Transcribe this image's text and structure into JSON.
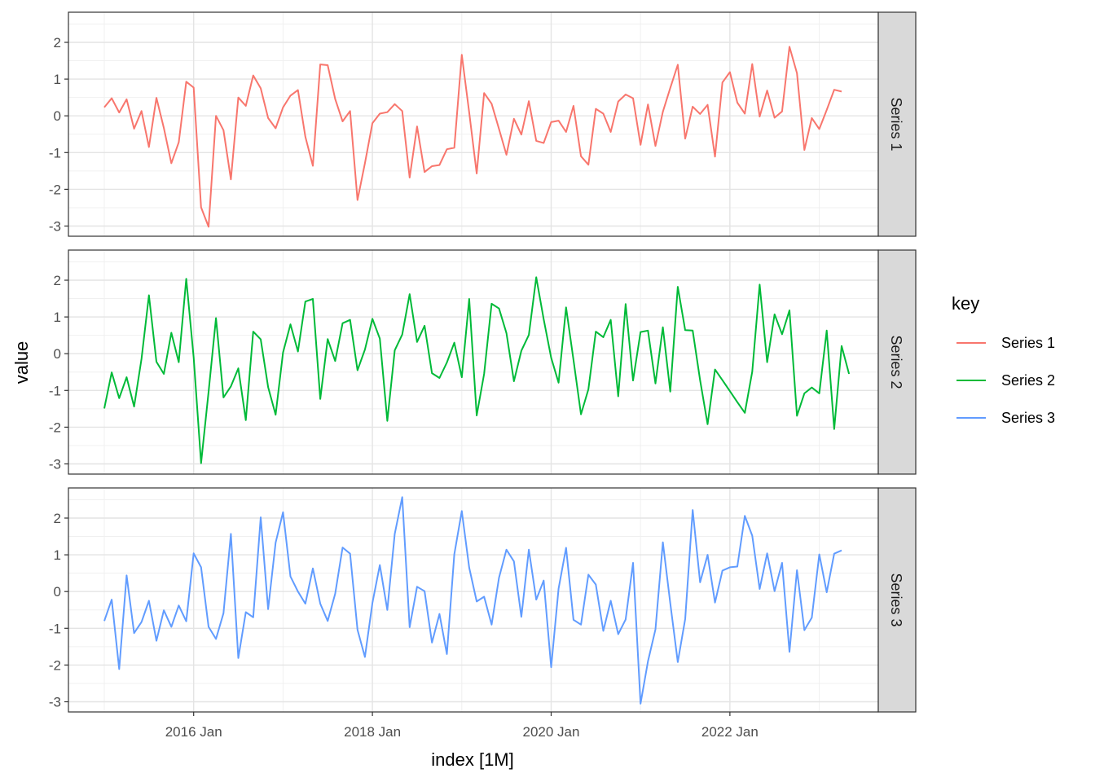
{
  "chart_data": {
    "type": "line",
    "xlabel": "index [1M]",
    "ylabel": "value",
    "x_start": "2015 Jan",
    "x_end": "2023 Apr",
    "x_ticks": [
      "2016 Jan",
      "2018 Jan",
      "2020 Jan",
      "2022 Jan"
    ],
    "y_ticks": [
      "2",
      "1",
      "0",
      "-1",
      "-2",
      "-3"
    ],
    "ylim": [
      -3.25,
      2.8
    ],
    "legend": {
      "title": "key",
      "position": "right"
    },
    "grid": true,
    "facets": [
      "Series 1",
      "Series 2",
      "Series 3"
    ],
    "series": [
      {
        "name": "Series 1",
        "color": "#F8766D",
        "values": [
          0.23,
          0.48,
          0.09,
          0.45,
          -0.35,
          0.13,
          -0.85,
          0.49,
          -0.33,
          -1.29,
          -0.72,
          0.93,
          0.77,
          -2.49,
          -3.02,
          0.0,
          -0.39,
          -1.73,
          0.5,
          0.27,
          1.1,
          0.75,
          -0.06,
          -0.34,
          0.23,
          0.55,
          0.7,
          -0.57,
          -1.36,
          1.4,
          1.38,
          0.46,
          -0.15,
          0.13,
          -2.29,
          -1.29,
          -0.2,
          0.06,
          0.1,
          0.32,
          0.13,
          -1.68,
          -0.29,
          -1.53,
          -1.37,
          -1.34,
          -0.91,
          -0.87,
          1.66,
          0.09,
          -1.57,
          0.62,
          0.33,
          -0.36,
          -1.06,
          -0.08,
          -0.51,
          0.4,
          -0.68,
          -0.74,
          -0.17,
          -0.13,
          -0.44,
          0.27,
          -1.1,
          -1.33,
          0.19,
          0.06,
          -0.44,
          0.39,
          0.58,
          0.48,
          -0.79,
          0.31,
          -0.82,
          0.11,
          0.76,
          1.39,
          -0.62,
          0.25,
          0.05,
          0.3,
          -1.11,
          0.91,
          1.19,
          0.36,
          0.06,
          1.41,
          -0.02,
          0.69,
          -0.05,
          0.12,
          1.88,
          1.16,
          -0.93,
          -0.06,
          -0.36,
          0.16,
          0.71,
          0.66
        ]
      },
      {
        "name": "Series 2",
        "color": "#00BA38",
        "values": [
          -1.49,
          -0.51,
          -1.21,
          -0.64,
          -1.44,
          -0.14,
          1.59,
          -0.22,
          -0.55,
          0.57,
          -0.23,
          2.04,
          -0.1,
          -2.98,
          -1.04,
          0.97,
          -1.19,
          -0.89,
          -0.4,
          -1.81,
          0.6,
          0.39,
          -0.91,
          -1.66,
          0.03,
          0.8,
          0.06,
          1.42,
          1.49,
          -1.23,
          0.4,
          -0.2,
          0.83,
          0.92,
          -0.45,
          0.11,
          0.95,
          0.41,
          -1.83,
          0.09,
          0.52,
          1.62,
          0.32,
          0.76,
          -0.53,
          -0.66,
          -0.24,
          0.3,
          -0.64,
          1.49,
          -1.68,
          -0.55,
          1.36,
          1.23,
          0.56,
          -0.75,
          0.08,
          0.51,
          2.08,
          0.94,
          -0.11,
          -0.79,
          1.26,
          -0.17,
          -1.65,
          -0.97,
          0.6,
          0.45,
          0.92,
          -1.16,
          1.35,
          -0.73,
          0.59,
          0.63,
          -0.81,
          0.72,
          -1.03,
          1.82,
          0.64,
          0.63,
          -0.72,
          -1.92,
          -0.43,
          -0.72,
          -1.02,
          -1.32,
          -1.61,
          -0.49,
          1.88,
          -0.23,
          1.07,
          0.53,
          1.18,
          -1.69,
          -1.08,
          -0.92,
          -1.08,
          0.63,
          -2.05,
          0.21,
          -0.55
        ]
      },
      {
        "name": "Series 3",
        "color": "#619CFF",
        "values": [
          -0.8,
          -0.22,
          -2.11,
          0.44,
          -1.13,
          -0.83,
          -0.25,
          -1.34,
          -0.51,
          -0.96,
          -0.38,
          -0.81,
          1.04,
          0.66,
          -0.96,
          -1.29,
          -0.59,
          1.57,
          -1.81,
          -0.56,
          -0.7,
          2.02,
          -0.48,
          1.33,
          2.16,
          0.41,
          0.0,
          -0.33,
          0.63,
          -0.33,
          -0.8,
          -0.06,
          1.2,
          1.03,
          -1.04,
          -1.78,
          -0.31,
          0.72,
          -0.5,
          1.57,
          2.57,
          -0.97,
          0.13,
          0.01,
          -1.39,
          -0.61,
          -1.7,
          1.01,
          2.19,
          0.65,
          -0.27,
          -0.14,
          -0.9,
          0.38,
          1.14,
          0.82,
          -0.69,
          1.14,
          -0.22,
          0.3,
          -2.06,
          0.08,
          1.19,
          -0.77,
          -0.9,
          0.46,
          0.19,
          -1.07,
          -0.25,
          -1.16,
          -0.76,
          0.78,
          -3.05,
          -1.9,
          -1.03,
          1.34,
          -0.32,
          -1.92,
          -0.75,
          2.22,
          0.25,
          1.0,
          -0.3,
          0.57,
          0.66,
          0.68,
          2.06,
          1.52,
          0.07,
          1.04,
          0.01,
          0.78,
          -1.64,
          0.58,
          -1.05,
          -0.71,
          1.01,
          -0.02,
          1.03,
          1.12
        ]
      }
    ]
  }
}
